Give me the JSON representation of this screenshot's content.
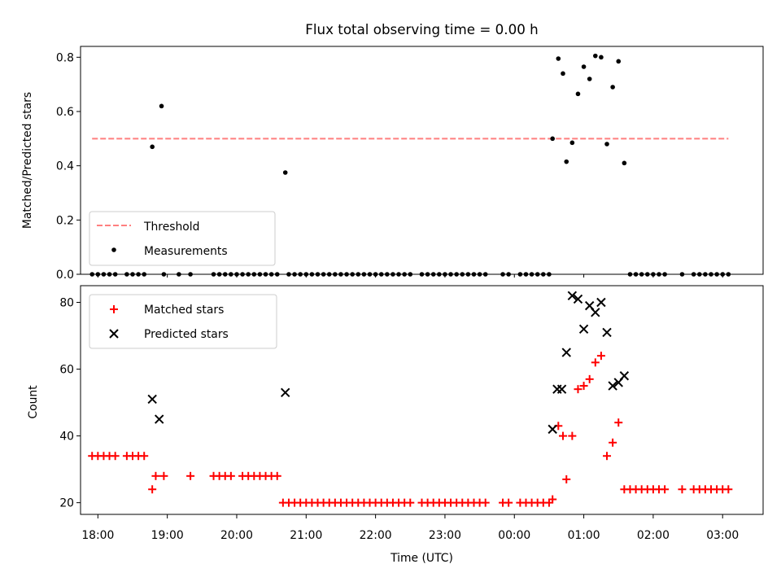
{
  "chart_data": [
    {
      "type": "scatter",
      "title": "Flux total observing time = 0.00 h",
      "xlabel": "",
      "ylabel": "Matched/Predicted stars",
      "xlim": [
        "17:45",
        "03:35"
      ],
      "ylim": [
        0,
        0.8
      ],
      "yticks": [
        "0.0",
        "0.2",
        "0.4",
        "0.6",
        "0.8"
      ],
      "threshold": {
        "name": "Threshold",
        "value": 0.5,
        "x_range": [
          "17:55",
          "03:05"
        ],
        "color": "#ff7f7f",
        "style": "dashed"
      },
      "series": [
        {
          "name": "Measurements",
          "color": "#000000",
          "marker": "dot",
          "points": [
            [
              "17:55",
              0
            ],
            [
              "18:00",
              0
            ],
            [
              "18:05",
              0
            ],
            [
              "18:10",
              0
            ],
            [
              "18:15",
              0
            ],
            [
              "18:25",
              0
            ],
            [
              "18:30",
              0
            ],
            [
              "18:35",
              0
            ],
            [
              "18:40",
              0
            ],
            [
              "18:47",
              0.47
            ],
            [
              "18:55",
              0.62
            ],
            [
              "18:57",
              0
            ],
            [
              "19:10",
              0
            ],
            [
              "19:20",
              0
            ],
            [
              "19:40",
              0
            ],
            [
              "19:45",
              0
            ],
            [
              "19:50",
              0
            ],
            [
              "19:55",
              0
            ],
            [
              "20:00",
              0
            ],
            [
              "20:05",
              0
            ],
            [
              "20:10",
              0
            ],
            [
              "20:15",
              0
            ],
            [
              "20:20",
              0
            ],
            [
              "20:25",
              0
            ],
            [
              "20:30",
              0
            ],
            [
              "20:35",
              0
            ],
            [
              "20:42",
              0.375
            ],
            [
              "20:45",
              0
            ],
            [
              "20:50",
              0
            ],
            [
              "20:55",
              0
            ],
            [
              "21:00",
              0
            ],
            [
              "21:05",
              0
            ],
            [
              "21:10",
              0
            ],
            [
              "21:15",
              0
            ],
            [
              "21:20",
              0
            ],
            [
              "21:25",
              0
            ],
            [
              "21:30",
              0
            ],
            [
              "21:35",
              0
            ],
            [
              "21:40",
              0
            ],
            [
              "21:45",
              0
            ],
            [
              "21:50",
              0
            ],
            [
              "21:55",
              0
            ],
            [
              "22:00",
              0
            ],
            [
              "22:05",
              0
            ],
            [
              "22:10",
              0
            ],
            [
              "22:15",
              0
            ],
            [
              "22:20",
              0
            ],
            [
              "22:25",
              0
            ],
            [
              "22:30",
              0
            ],
            [
              "22:40",
              0
            ],
            [
              "22:45",
              0
            ],
            [
              "22:50",
              0
            ],
            [
              "22:55",
              0
            ],
            [
              "23:00",
              0
            ],
            [
              "23:05",
              0
            ],
            [
              "23:10",
              0
            ],
            [
              "23:15",
              0
            ],
            [
              "23:20",
              0
            ],
            [
              "23:25",
              0
            ],
            [
              "23:30",
              0
            ],
            [
              "23:35",
              0
            ],
            [
              "23:50",
              0
            ],
            [
              "23:55",
              0
            ],
            [
              "00:05",
              0
            ],
            [
              "00:10",
              0
            ],
            [
              "00:15",
              0
            ],
            [
              "00:20",
              0
            ],
            [
              "00:25",
              0
            ],
            [
              "00:30",
              0
            ],
            [
              "00:33",
              0.5
            ],
            [
              "00:38",
              0.795
            ],
            [
              "00:42",
              0.74
            ],
            [
              "00:45",
              0.415
            ],
            [
              "00:50",
              0.485
            ],
            [
              "00:55",
              0.665
            ],
            [
              "01:00",
              0.765
            ],
            [
              "01:05",
              0.72
            ],
            [
              "01:10",
              0.805
            ],
            [
              "01:15",
              0.8
            ],
            [
              "01:20",
              0.48
            ],
            [
              "01:25",
              0.69
            ],
            [
              "01:30",
              0.785
            ],
            [
              "01:35",
              0.41
            ],
            [
              "01:40",
              0
            ],
            [
              "01:45",
              0
            ],
            [
              "01:50",
              0
            ],
            [
              "01:55",
              0
            ],
            [
              "02:00",
              0
            ],
            [
              "02:05",
              0
            ],
            [
              "02:10",
              0
            ],
            [
              "02:25",
              0
            ],
            [
              "02:35",
              0
            ],
            [
              "02:40",
              0
            ],
            [
              "02:45",
              0
            ],
            [
              "02:50",
              0
            ],
            [
              "02:55",
              0
            ],
            [
              "03:00",
              0
            ],
            [
              "03:05",
              0
            ]
          ]
        }
      ],
      "legend": {
        "position": "lower-left",
        "entries": [
          "Threshold",
          "Measurements"
        ]
      }
    },
    {
      "type": "scatter",
      "title": "",
      "xlabel": "Time (UTC)",
      "ylabel": "Count",
      "xlim": [
        "17:45",
        "03:35"
      ],
      "ylim": [
        16.5,
        85
      ],
      "yticks": [
        "20",
        "40",
        "60",
        "80"
      ],
      "xticks": [
        "18:00",
        "19:00",
        "20:00",
        "21:00",
        "22:00",
        "23:00",
        "00:00",
        "01:00",
        "02:00",
        "03:00"
      ],
      "series": [
        {
          "name": "Matched stars",
          "color": "#ff0000",
          "marker": "plus",
          "points": [
            [
              "17:55",
              34
            ],
            [
              "18:00",
              34
            ],
            [
              "18:05",
              34
            ],
            [
              "18:10",
              34
            ],
            [
              "18:15",
              34
            ],
            [
              "18:25",
              34
            ],
            [
              "18:30",
              34
            ],
            [
              "18:35",
              34
            ],
            [
              "18:40",
              34
            ],
            [
              "18:47",
              24
            ],
            [
              "18:50",
              28
            ],
            [
              "18:57",
              28
            ],
            [
              "19:20",
              28
            ],
            [
              "19:40",
              28
            ],
            [
              "19:45",
              28
            ],
            [
              "19:50",
              28
            ],
            [
              "19:55",
              28
            ],
            [
              "20:05",
              28
            ],
            [
              "20:10",
              28
            ],
            [
              "20:15",
              28
            ],
            [
              "20:20",
              28
            ],
            [
              "20:25",
              28
            ],
            [
              "20:30",
              28
            ],
            [
              "20:35",
              28
            ],
            [
              "20:40",
              20
            ],
            [
              "20:45",
              20
            ],
            [
              "20:50",
              20
            ],
            [
              "20:55",
              20
            ],
            [
              "21:00",
              20
            ],
            [
              "21:05",
              20
            ],
            [
              "21:10",
              20
            ],
            [
              "21:15",
              20
            ],
            [
              "21:20",
              20
            ],
            [
              "21:25",
              20
            ],
            [
              "21:30",
              20
            ],
            [
              "21:35",
              20
            ],
            [
              "21:40",
              20
            ],
            [
              "21:45",
              20
            ],
            [
              "21:50",
              20
            ],
            [
              "21:55",
              20
            ],
            [
              "22:00",
              20
            ],
            [
              "22:05",
              20
            ],
            [
              "22:10",
              20
            ],
            [
              "22:15",
              20
            ],
            [
              "22:20",
              20
            ],
            [
              "22:25",
              20
            ],
            [
              "22:30",
              20
            ],
            [
              "22:40",
              20
            ],
            [
              "22:45",
              20
            ],
            [
              "22:50",
              20
            ],
            [
              "22:55",
              20
            ],
            [
              "23:00",
              20
            ],
            [
              "23:05",
              20
            ],
            [
              "23:10",
              20
            ],
            [
              "23:15",
              20
            ],
            [
              "23:20",
              20
            ],
            [
              "23:25",
              20
            ],
            [
              "23:30",
              20
            ],
            [
              "23:35",
              20
            ],
            [
              "23:50",
              20
            ],
            [
              "23:55",
              20
            ],
            [
              "00:05",
              20
            ],
            [
              "00:10",
              20
            ],
            [
              "00:15",
              20
            ],
            [
              "00:20",
              20
            ],
            [
              "00:25",
              20
            ],
            [
              "00:30",
              20
            ],
            [
              "00:33",
              21
            ],
            [
              "00:38",
              43
            ],
            [
              "00:42",
              40
            ],
            [
              "00:45",
              27
            ],
            [
              "00:50",
              40
            ],
            [
              "00:55",
              54
            ],
            [
              "01:00",
              55
            ],
            [
              "01:05",
              57
            ],
            [
              "01:10",
              62
            ],
            [
              "01:15",
              64
            ],
            [
              "01:20",
              34
            ],
            [
              "01:25",
              38
            ],
            [
              "01:30",
              44
            ],
            [
              "01:35",
              24
            ],
            [
              "01:40",
              24
            ],
            [
              "01:45",
              24
            ],
            [
              "01:50",
              24
            ],
            [
              "01:55",
              24
            ],
            [
              "02:00",
              24
            ],
            [
              "02:05",
              24
            ],
            [
              "02:10",
              24
            ],
            [
              "02:25",
              24
            ],
            [
              "02:35",
              24
            ],
            [
              "02:40",
              24
            ],
            [
              "02:45",
              24
            ],
            [
              "02:50",
              24
            ],
            [
              "02:55",
              24
            ],
            [
              "03:00",
              24
            ],
            [
              "03:05",
              24
            ]
          ]
        },
        {
          "name": "Predicted stars",
          "color": "#000000",
          "marker": "x",
          "points": [
            [
              "18:47",
              51
            ],
            [
              "18:53",
              45
            ],
            [
              "20:42",
              53
            ],
            [
              "00:33",
              42
            ],
            [
              "00:37",
              54
            ],
            [
              "00:41",
              54
            ],
            [
              "00:45",
              65
            ],
            [
              "00:50",
              82
            ],
            [
              "00:55",
              81
            ],
            [
              "01:00",
              72
            ],
            [
              "01:05",
              79
            ],
            [
              "01:10",
              77
            ],
            [
              "01:15",
              80
            ],
            [
              "01:20",
              71
            ],
            [
              "01:25",
              55
            ],
            [
              "01:30",
              56
            ],
            [
              "01:35",
              58
            ]
          ]
        }
      ],
      "legend": {
        "position": "upper-left",
        "entries": [
          "Matched stars",
          "Predicted stars"
        ]
      }
    }
  ]
}
